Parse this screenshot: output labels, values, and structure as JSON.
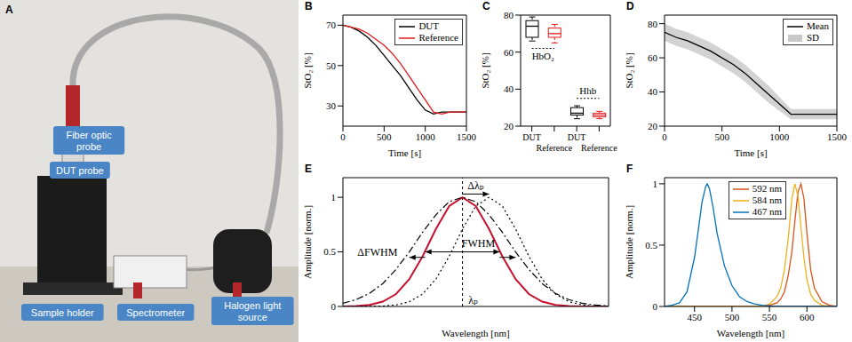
{
  "photo": {
    "panel": "A",
    "labels": [
      "Fiber optic probe",
      "DUT probe",
      "Sample holder",
      "Spectrometer",
      "Halogen light source"
    ]
  },
  "chart_data": [
    {
      "panel": "B",
      "type": "line",
      "x_label": "Time [s]",
      "y_label": "StO₂ [%]",
      "x": [
        0,
        100,
        200,
        300,
        400,
        500,
        600,
        700,
        800,
        900,
        1000,
        1100,
        1200,
        1300,
        1400,
        1500
      ],
      "series": [
        {
          "name": "DUT",
          "color": "#000000",
          "values": [
            70,
            69,
            67,
            64,
            60,
            55,
            50,
            45,
            39,
            33,
            28,
            26,
            27,
            27,
            27,
            27
          ]
        },
        {
          "name": "Reference",
          "color": "#e41a1c",
          "values": [
            70,
            69,
            68,
            66,
            63,
            60,
            56,
            51,
            45,
            39,
            33,
            27,
            26,
            27,
            27,
            27
          ]
        }
      ],
      "xlim": [
        0,
        1500
      ],
      "ylim": [
        20,
        75
      ],
      "xticks": [
        0,
        500,
        1000,
        1500
      ],
      "yticks": [
        30,
        50,
        70
      ],
      "legend": "upper right"
    },
    {
      "panel": "C",
      "type": "box",
      "y_label": "StO₂ [%]",
      "categories": [
        "DUT",
        "Reference",
        "DUT",
        "Reference"
      ],
      "boxes": [
        {
          "min": 66,
          "q1": 68,
          "median": 74,
          "q3": 77,
          "max": 79,
          "color": "#000000"
        },
        {
          "min": 65,
          "q1": 68,
          "median": 70,
          "q3": 73,
          "max": 75,
          "color": "#e41a1c"
        },
        {
          "min": 24,
          "q1": 26,
          "median": 27,
          "q3": 30,
          "max": 31,
          "color": "#000000"
        },
        {
          "min": 24,
          "q1": 25,
          "median": 26,
          "q3": 27,
          "max": 28,
          "color": "#e41a1c"
        }
      ],
      "groups": [
        {
          "label": "HbO₂",
          "from": 0,
          "to": 1,
          "y": 62
        },
        {
          "label": "Hhb",
          "from": 2,
          "to": 3,
          "y": 35
        }
      ],
      "ylim": [
        20,
        80
      ],
      "yticks": [
        20,
        40,
        60,
        80
      ]
    },
    {
      "panel": "D",
      "type": "line",
      "x_label": "Time [s]",
      "y_label": "StO₂ [%]",
      "x": [
        0,
        100,
        200,
        300,
        400,
        500,
        600,
        700,
        800,
        900,
        1000,
        1100,
        1200,
        1300,
        1400,
        1500
      ],
      "series": [
        {
          "name": "Mean",
          "color": "#000000",
          "values": [
            75,
            72,
            70,
            67,
            64,
            60,
            56,
            51,
            45,
            39,
            33,
            27,
            27,
            27,
            27,
            27
          ]
        }
      ],
      "sd": {
        "name": "SD",
        "color": "#c8c8c8",
        "values": [
          5,
          5,
          5,
          5,
          5,
          5,
          5,
          5,
          5,
          5,
          4,
          3,
          3,
          3,
          3,
          3
        ]
      },
      "xlim": [
        0,
        1500
      ],
      "ylim": [
        20,
        85
      ],
      "xticks": [
        0,
        500,
        1000,
        1500
      ],
      "yticks": [
        20,
        40,
        60,
        80
      ],
      "legend": "upper right"
    },
    {
      "panel": "E",
      "type": "line",
      "x_label": "Wavelength [nm]",
      "y_label": "Amplitude [norm.]",
      "tick_labels": "y",
      "x": [
        0,
        5,
        10,
        15,
        20,
        25,
        30,
        35,
        40,
        45,
        50,
        55,
        60,
        65,
        70,
        75,
        80,
        85,
        90,
        95,
        100
      ],
      "series": [
        {
          "color": "#c8102e",
          "line_style": "solid",
          "values": [
            0.001,
            0.004,
            0.014,
            0.044,
            0.114,
            0.25,
            0.46,
            0.71,
            0.92,
            1,
            0.92,
            0.71,
            0.46,
            0.25,
            0.114,
            0.044,
            0.014,
            0.004,
            0.001,
            0,
            0
          ]
        },
        {
          "color": "#000000",
          "line_style": "dashdot",
          "values": [
            0.03,
            0.063,
            0.12,
            0.21,
            0.34,
            0.5,
            0.68,
            0.84,
            0.96,
            1,
            0.96,
            0.84,
            0.68,
            0.5,
            0.34,
            0.21,
            0.12,
            0.063,
            0.03,
            0.013,
            0.005
          ]
        },
        {
          "color": "#000000",
          "line_style": "dotted",
          "values": [
            0,
            0,
            0.001,
            0.004,
            0.014,
            0.044,
            0.114,
            0.25,
            0.46,
            0.71,
            0.92,
            1,
            0.92,
            0.71,
            0.46,
            0.25,
            0.114,
            0.044,
            0.014,
            0.004,
            0.001
          ]
        }
      ],
      "reference_x": 45,
      "arrows": [
        {
          "x1": 45,
          "x2": 55,
          "y": 1.03
        },
        {
          "x1": 45,
          "x2": 31,
          "y": 0.5
        },
        {
          "x1": 45,
          "x2": 59,
          "y": 0.5
        },
        {
          "x1": 31,
          "x2": 25,
          "y": 0.45
        },
        {
          "x1": 59,
          "x2": 65,
          "y": 0.45
        }
      ],
      "annotations": [
        {
          "text": "Δλₚ",
          "x": 50,
          "y": 1.11
        },
        {
          "text": "FWHM",
          "x": 51,
          "y": 0.58
        },
        {
          "text": "ΔFWHM",
          "x": 13,
          "y": 0.5
        },
        {
          "text": "λₚ",
          "x": 49,
          "y": 0.06
        }
      ],
      "xlim": [
        0,
        100
      ],
      "ylim": [
        0,
        1.18
      ],
      "yticks": [
        0,
        0.5,
        1
      ]
    },
    {
      "panel": "F",
      "type": "line",
      "x_label": "Wavelength [nm]",
      "y_label": "Amplitude [norm.]",
      "x": [
        410,
        420,
        430,
        440,
        450,
        455,
        460,
        465,
        467,
        470,
        475,
        480,
        490,
        500,
        510,
        520,
        530,
        540,
        550,
        560,
        565,
        570,
        575,
        580,
        584,
        588,
        592,
        596,
        600,
        605,
        610,
        620,
        630,
        640
      ],
      "series": [
        {
          "name": "592 nm",
          "color": "#d95319",
          "values": [
            0,
            0,
            0,
            0,
            0,
            0,
            0,
            0,
            0,
            0,
            0,
            0,
            0,
            0,
            0,
            0,
            0,
            0,
            0.01,
            0.03,
            0.06,
            0.12,
            0.25,
            0.45,
            0.7,
            0.93,
            1,
            0.88,
            0.6,
            0.3,
            0.15,
            0.04,
            0.01,
            0
          ]
        },
        {
          "name": "584 nm",
          "color": "#edb120",
          "values": [
            0,
            0,
            0,
            0,
            0,
            0,
            0,
            0,
            0,
            0,
            0,
            0,
            0,
            0,
            0,
            0,
            0,
            0,
            0.02,
            0.08,
            0.15,
            0.3,
            0.55,
            0.88,
            1,
            0.9,
            0.65,
            0.4,
            0.22,
            0.1,
            0.05,
            0.01,
            0,
            0
          ]
        },
        {
          "name": "467 nm",
          "color": "#0072bd",
          "values": [
            0,
            0.01,
            0.03,
            0.12,
            0.4,
            0.62,
            0.85,
            0.98,
            1,
            0.96,
            0.8,
            0.6,
            0.33,
            0.17,
            0.08,
            0.04,
            0.02,
            0.01,
            0.005,
            0,
            0,
            0,
            0,
            0,
            0,
            0,
            0,
            0,
            0,
            0,
            0,
            0,
            0,
            0
          ]
        }
      ],
      "xlim": [
        410,
        640
      ],
      "ylim": [
        0,
        1.05
      ],
      "xticks": [
        450,
        500,
        550,
        600
      ],
      "yticks": [
        0,
        0.5,
        1
      ],
      "legend": "upper center"
    }
  ]
}
